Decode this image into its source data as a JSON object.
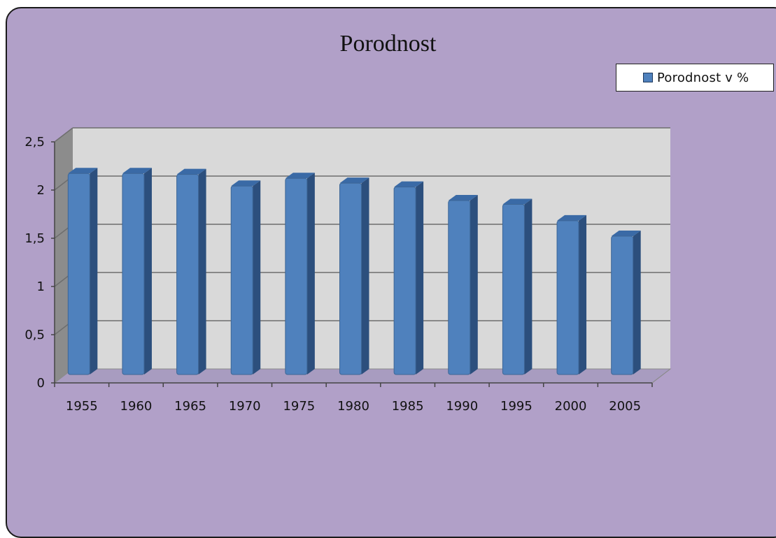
{
  "chart_data": {
    "type": "bar",
    "title": "Porodnost",
    "categories": [
      "1955",
      "1960",
      "1965",
      "1970",
      "1975",
      "1980",
      "1985",
      "1990",
      "1995",
      "2000",
      "2005"
    ],
    "series": [
      {
        "name": "Porodnost v %",
        "values": [
          2.15,
          2.15,
          2.14,
          2.02,
          2.1,
          2.05,
          2.01,
          1.87,
          1.83,
          1.66,
          1.5
        ]
      }
    ],
    "y_ticks": [
      "0",
      "0,5",
      "1",
      "1,5",
      "2",
      "2,5"
    ],
    "ylim": [
      0,
      2.5
    ],
    "grid": true,
    "legend_position": "top-right",
    "colors": {
      "bar": "#4f81bd",
      "bar_dark": "#2c4f7d",
      "bar_top": "#3a6aa6",
      "background": "#b1a0c8",
      "plot_back": "#d9d9d9"
    }
  }
}
